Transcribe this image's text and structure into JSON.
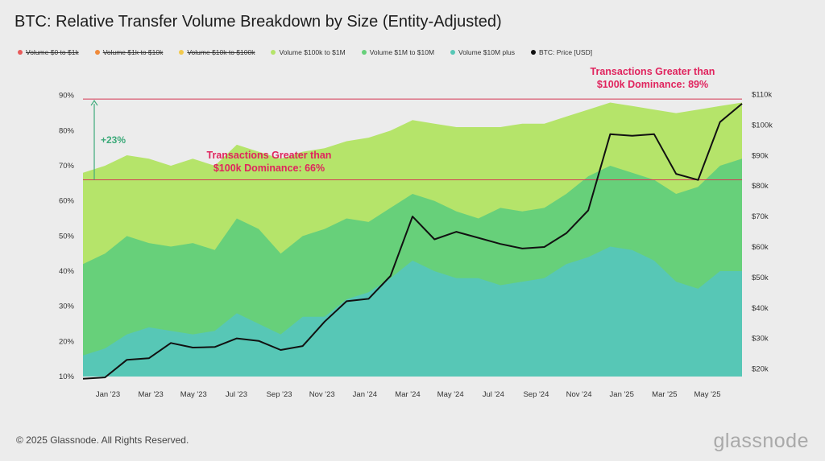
{
  "title": "BTC: Relative Transfer Volume Breakdown by Size (Entity-Adjusted)",
  "legend": [
    {
      "label": "Volume $0 to $1k",
      "color": "#e85b5b",
      "disabled": true
    },
    {
      "label": "Volume $1k to $10k",
      "color": "#f08a3a",
      "disabled": true
    },
    {
      "label": "Volume $10k to $100k",
      "color": "#f2c94c",
      "disabled": true
    },
    {
      "label": "Volume $100k to $1M",
      "color": "#b5e46a",
      "disabled": false
    },
    {
      "label": "Volume $1M to $10M",
      "color": "#67d07a",
      "disabled": false
    },
    {
      "label": "Volume $10M plus",
      "color": "#57c7b6",
      "disabled": false
    },
    {
      "label": "BTC: Price [USD]",
      "color": "#111111",
      "disabled": false
    }
  ],
  "annotations": {
    "increase": "+23%",
    "dominance_low": [
      "Transactions Greater than",
      "$100k Dominance: 66%"
    ],
    "dominance_high": [
      "Transactions Greater than",
      "$100k Dominance: 89%"
    ]
  },
  "footer": "© 2025 Glassnode. All Rights Reserved.",
  "brand": "glassnode",
  "colors": {
    "band_100k_1m": "#b5e46a",
    "band_1m_10m": "#67d07a",
    "band_10m_plus": "#57c7b6",
    "price": "#111111",
    "reference": "#d43a55",
    "annotation_text": "#e0245e",
    "increase": "#3daa7a"
  },
  "chart_data": {
    "type": "area",
    "x_ticks": [
      "Jan '23",
      "Mar '23",
      "May '23",
      "Jul '23",
      "Sep '23",
      "Nov '23",
      "Jan '24",
      "Mar '24",
      "May '24",
      "Jul '24",
      "Sep '24",
      "Nov '24",
      "Jan '25",
      "Mar '25",
      "May '25"
    ],
    "y_left_ticks": [
      "10%",
      "20%",
      "30%",
      "40%",
      "50%",
      "60%",
      "70%",
      "80%",
      "90%"
    ],
    "y_left_range": [
      10,
      92
    ],
    "y_right_ticks": [
      "$20k",
      "$30k",
      "$40k",
      "$50k",
      "$60k",
      "$70k",
      "$80k",
      "$90k",
      "$100k",
      "$110k"
    ],
    "y_right_range": [
      17500,
      112000
    ],
    "reference_lines": [
      {
        "value": 66,
        "axis": "left"
      },
      {
        "value": 89,
        "axis": "left"
      }
    ],
    "x": [
      "2022-12",
      "2023-01",
      "2023-02",
      "2023-03",
      "2023-04",
      "2023-05",
      "2023-06",
      "2023-07",
      "2023-08",
      "2023-09",
      "2023-10",
      "2023-11",
      "2023-12",
      "2024-01",
      "2024-02",
      "2024-03",
      "2024-04",
      "2024-05",
      "2024-06",
      "2024-07",
      "2024-08",
      "2024-09",
      "2024-10",
      "2024-11",
      "2024-12",
      "2025-01",
      "2025-02",
      "2025-03",
      "2025-04",
      "2025-05",
      "2025-06"
    ],
    "series": [
      {
        "name": "Volume $10M plus",
        "axis": "left",
        "values": [
          16,
          18,
          22,
          24,
          23,
          22,
          23,
          28,
          25,
          22,
          27,
          27,
          32,
          34,
          38,
          43,
          40,
          38,
          38,
          36,
          37,
          38,
          42,
          44,
          47,
          46,
          43,
          37,
          35,
          40,
          40
        ]
      },
      {
        "name": "Volume $1M to $10M",
        "axis": "left",
        "values": [
          42,
          45,
          50,
          48,
          47,
          48,
          46,
          55,
          52,
          45,
          50,
          52,
          55,
          54,
          58,
          62,
          60,
          57,
          55,
          58,
          57,
          58,
          62,
          67,
          70,
          68,
          66,
          62,
          64,
          70,
          72
        ]
      },
      {
        "name": "Volume $100k to $1M",
        "axis": "left",
        "values": [
          68,
          70,
          73,
          72,
          70,
          72,
          70,
          76,
          74,
          72,
          74,
          75,
          77,
          78,
          80,
          83,
          82,
          81,
          81,
          81,
          82,
          82,
          84,
          86,
          88,
          87,
          86,
          85,
          86,
          87,
          88
        ]
      },
      {
        "name": "BTC: Price [USD]",
        "axis": "right",
        "values": [
          16800,
          17200,
          23000,
          23500,
          28500,
          27000,
          27200,
          30000,
          29200,
          26200,
          27500,
          35500,
          42200,
          43000,
          50500,
          70000,
          62500,
          65000,
          63000,
          61000,
          59500,
          60000,
          64500,
          72000,
          97000,
          96500,
          97000,
          84000,
          82000,
          101000,
          107000
        ]
      }
    ]
  }
}
